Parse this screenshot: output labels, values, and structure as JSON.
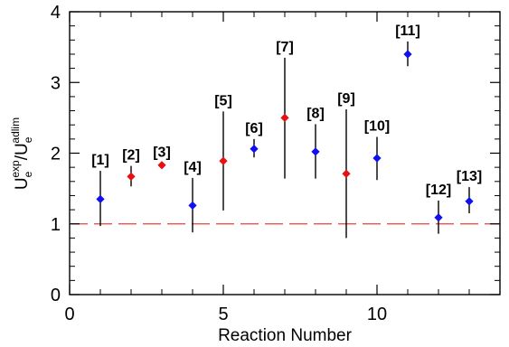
{
  "chart_data": {
    "type": "scatter",
    "title": "",
    "xlabel": "Reaction Number",
    "ylabel": {
      "main": "U",
      "sub": "e",
      "sup": "exp",
      "slash": "/",
      "main2": "U",
      "sub2": "e",
      "sup2": "adlim"
    },
    "xlim": [
      0,
      14
    ],
    "ylim": [
      0,
      4
    ],
    "x_major_ticks": [
      0,
      5,
      10
    ],
    "y_major_ticks": [
      0,
      1,
      2,
      3,
      4
    ],
    "x_major_tick_labels": [
      "0",
      "5",
      "10"
    ],
    "y_major_tick_labels": [
      "0",
      "1",
      "2",
      "3",
      "4"
    ],
    "x_minor_step": 1,
    "y_minor_step": 0.2,
    "grid": false,
    "reference_line": {
      "y": 1,
      "style": "dashed",
      "color": "#e8403b"
    },
    "colors": {
      "blue": "#1010f0",
      "red": "#e81010",
      "error_bar": "#000000",
      "axis": "#000000"
    },
    "points": [
      {
        "x": 1,
        "y": 1.35,
        "y_low": 0.97,
        "y_high": 1.75,
        "label": "[1]",
        "color": "blue"
      },
      {
        "x": 2,
        "y": 1.67,
        "y_low": 1.53,
        "y_high": 1.82,
        "label": "[2]",
        "color": "red"
      },
      {
        "x": 3,
        "y": 1.83,
        "y_low": 1.8,
        "y_high": 1.86,
        "label": "[3]",
        "color": "red"
      },
      {
        "x": 4,
        "y": 1.26,
        "y_low": 0.88,
        "y_high": 1.65,
        "label": "[4]",
        "color": "blue"
      },
      {
        "x": 5,
        "y": 1.89,
        "y_low": 1.19,
        "y_high": 2.59,
        "label": "[5]",
        "color": "red"
      },
      {
        "x": 6,
        "y": 2.06,
        "y_low": 1.94,
        "y_high": 2.2,
        "label": "[6]",
        "color": "blue"
      },
      {
        "x": 7,
        "y": 2.5,
        "y_low": 1.64,
        "y_high": 3.35,
        "label": "[7]",
        "color": "red"
      },
      {
        "x": 8,
        "y": 2.02,
        "y_low": 1.64,
        "y_high": 2.41,
        "label": "[8]",
        "color": "blue"
      },
      {
        "x": 9,
        "y": 1.71,
        "y_low": 0.8,
        "y_high": 2.62,
        "label": "[9]",
        "color": "red"
      },
      {
        "x": 10,
        "y": 1.93,
        "y_low": 1.62,
        "y_high": 2.23,
        "label": "[10]",
        "color": "blue"
      },
      {
        "x": 11,
        "y": 3.4,
        "y_low": 3.23,
        "y_high": 3.58,
        "label": "[11]",
        "color": "blue"
      },
      {
        "x": 12,
        "y": 1.09,
        "y_low": 0.86,
        "y_high": 1.33,
        "label": "[12]",
        "color": "blue"
      },
      {
        "x": 13,
        "y": 1.32,
        "y_low": 1.15,
        "y_high": 1.52,
        "label": "[13]",
        "color": "blue"
      }
    ]
  }
}
